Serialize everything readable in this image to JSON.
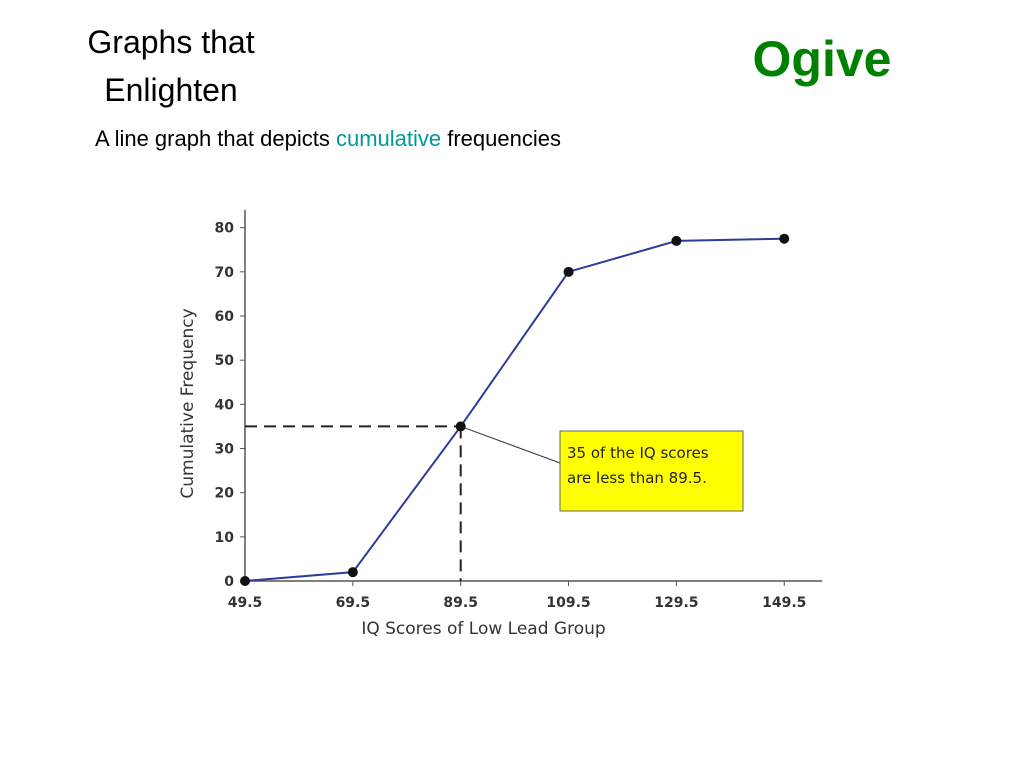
{
  "slide": {
    "title_lines": [
      "Graphs that",
      "Enlighten"
    ],
    "heading": "Ogive",
    "subtitle_parts": [
      "A line graph that depicts",
      "cumulative",
      "frequencies"
    ]
  },
  "chart_data": {
    "type": "line",
    "x": [
      49.5,
      69.5,
      89.5,
      109.5,
      129.5,
      149.5
    ],
    "series": [
      {
        "color": "#2b3c9b",
        "values": [
          0,
          2,
          35,
          70,
          77,
          77.5
        ]
      }
    ],
    "xlim": [
      49.5,
      156.5
    ],
    "ylim": [
      0,
      84
    ],
    "xticks": [
      49.5,
      69.5,
      89.5,
      109.5,
      129.5,
      149.5
    ],
    "yticks": [
      0,
      10,
      20,
      30,
      40,
      50,
      60,
      70,
      80
    ],
    "xlabel": "IQ Scores of Low Lead Group",
    "ylabel": "Cumulative Frequency",
    "annotation": {
      "lines": [
        "35 of the IQ scores",
        "are less than 89.5."
      ],
      "x": 89.5,
      "y": 35
    }
  }
}
